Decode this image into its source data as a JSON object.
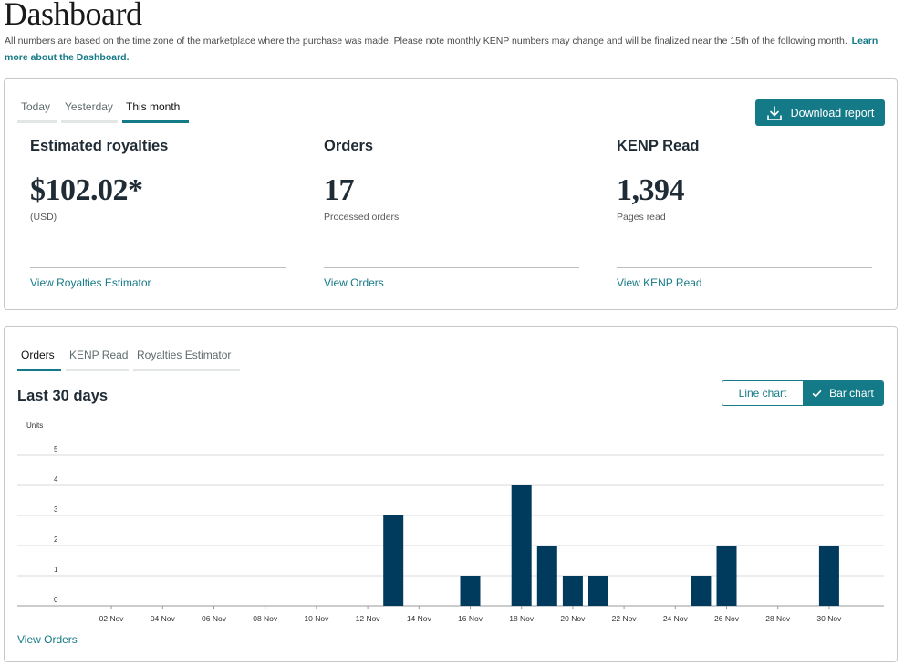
{
  "page": {
    "title": "Dashboard",
    "intro": "All numbers are based on the time zone of the marketplace where the purchase was made. Please note monthly KENP numbers may change and will be finalized near the 15th of the following month.",
    "learn_more": "Learn more about the Dashboard."
  },
  "summary": {
    "tabs": [
      "Today",
      "Yesterday",
      "This month"
    ],
    "active_tab": "This month",
    "download_label": "Download report",
    "metrics": [
      {
        "heading": "Estimated royalties",
        "value": "$102.02*",
        "sub": "(USD)",
        "link": "View Royalties Estimator"
      },
      {
        "heading": "Orders",
        "value": "17",
        "sub": "Processed orders",
        "link": "View Orders"
      },
      {
        "heading": "KENP Read",
        "value": "1,394",
        "sub": "Pages read",
        "link": "View KENP Read"
      }
    ]
  },
  "chart_section": {
    "tabs": [
      "Orders",
      "KENP Read",
      "Royalties Estimator"
    ],
    "active_tab": "Orders",
    "title": "Last 30 days",
    "toggle": {
      "line_label": "Line chart",
      "bar_label": "Bar chart",
      "selected": "Bar chart"
    },
    "footer_link": "View Orders"
  },
  "chart_data": {
    "type": "bar",
    "ylabel": "Units",
    "ylim": [
      0,
      5
    ],
    "yticks": [
      0,
      1,
      2,
      3,
      4,
      5
    ],
    "grid": true,
    "color": "#003a5d",
    "categories": [
      "01 Nov",
      "02 Nov",
      "03 Nov",
      "04 Nov",
      "05 Nov",
      "06 Nov",
      "07 Nov",
      "08 Nov",
      "09 Nov",
      "10 Nov",
      "11 Nov",
      "12 Nov",
      "13 Nov",
      "14 Nov",
      "15 Nov",
      "16 Nov",
      "17 Nov",
      "18 Nov",
      "19 Nov",
      "20 Nov",
      "21 Nov",
      "22 Nov",
      "23 Nov",
      "24 Nov",
      "25 Nov",
      "26 Nov",
      "27 Nov",
      "28 Nov",
      "29 Nov",
      "30 Nov"
    ],
    "values": [
      0,
      0,
      0,
      0,
      0,
      0,
      0,
      0,
      0,
      0,
      0,
      0,
      3,
      0,
      0,
      1,
      0,
      4,
      2,
      1,
      1,
      0,
      0,
      0,
      1,
      2,
      0,
      0,
      0,
      2
    ],
    "xtick_labels": [
      "02 Nov",
      "04 Nov",
      "06 Nov",
      "08 Nov",
      "10 Nov",
      "12 Nov",
      "14 Nov",
      "16 Nov",
      "18 Nov",
      "20 Nov",
      "22 Nov",
      "24 Nov",
      "26 Nov",
      "28 Nov",
      "30 Nov"
    ]
  },
  "colors": {
    "accent": "#157a87",
    "bar": "#003a5d",
    "text": "#1f2b35"
  }
}
